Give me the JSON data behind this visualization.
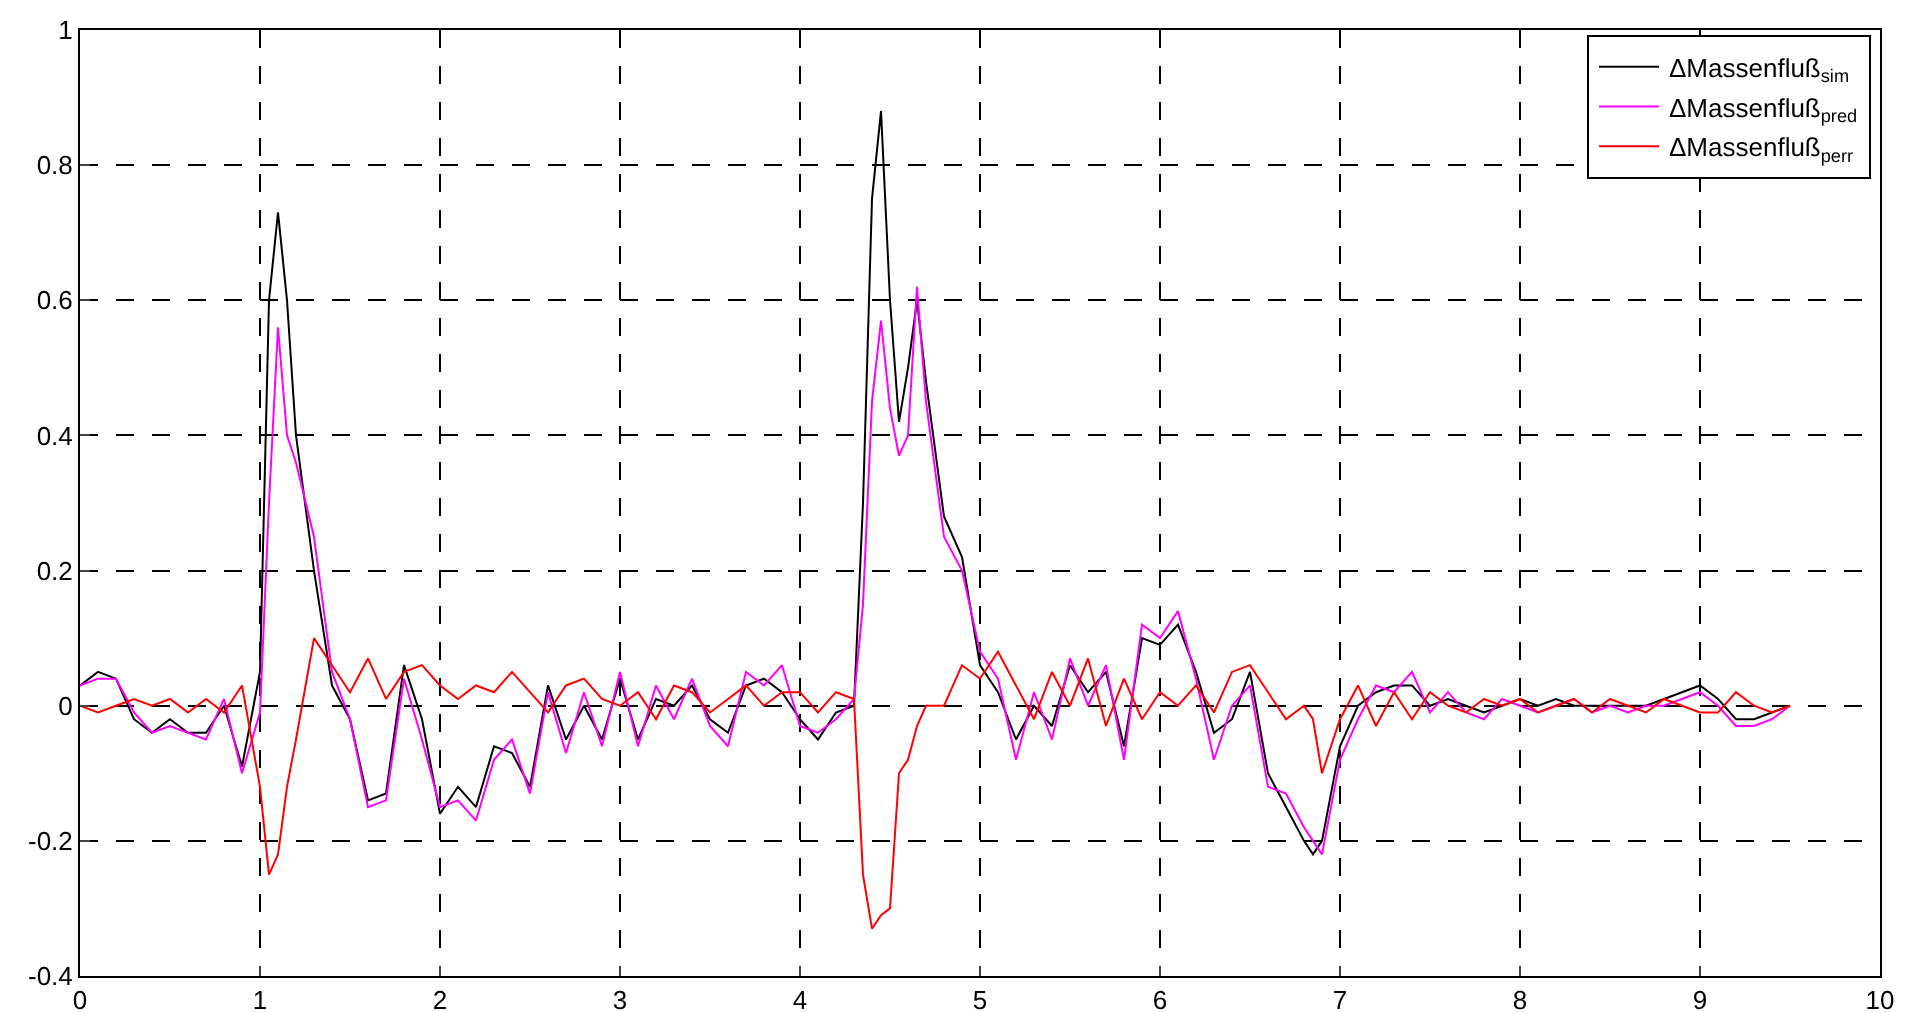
{
  "chart_data": {
    "type": "line",
    "xlim": [
      0,
      10
    ],
    "ylim": [
      -0.4,
      1
    ],
    "xticks": [
      0,
      1,
      2,
      3,
      4,
      5,
      6,
      7,
      8,
      9,
      10
    ],
    "yticks": [
      -0.4,
      -0.2,
      0,
      0.2,
      0.4,
      0.6,
      0.8,
      1
    ],
    "grid": true,
    "legend": "top right",
    "line_style": "solid",
    "x": [
      0,
      0.1,
      0.2,
      0.3,
      0.4,
      0.5,
      0.6,
      0.7,
      0.8,
      0.9,
      1.0,
      1.05,
      1.1,
      1.15,
      1.2,
      1.3,
      1.4,
      1.5,
      1.6,
      1.7,
      1.8,
      1.9,
      2.0,
      2.1,
      2.2,
      2.3,
      2.4,
      2.5,
      2.6,
      2.7,
      2.8,
      2.9,
      3.0,
      3.1,
      3.2,
      3.3,
      3.4,
      3.5,
      3.6,
      3.7,
      3.8,
      3.9,
      4.0,
      4.1,
      4.2,
      4.3,
      4.35,
      4.4,
      4.45,
      4.5,
      4.55,
      4.6,
      4.65,
      4.7,
      4.8,
      4.9,
      5.0,
      5.1,
      5.2,
      5.3,
      5.4,
      5.5,
      5.6,
      5.7,
      5.8,
      5.9,
      6.0,
      6.1,
      6.2,
      6.3,
      6.4,
      6.5,
      6.6,
      6.7,
      6.8,
      6.85,
      6.9,
      7.0,
      7.1,
      7.2,
      7.3,
      7.4,
      7.5,
      7.6,
      7.7,
      7.8,
      7.9,
      8.0,
      8.1,
      8.2,
      8.3,
      8.4,
      8.5,
      8.6,
      8.7,
      8.8,
      8.9,
      9.0,
      9.1,
      9.2,
      9.3,
      9.4,
      9.5
    ],
    "series": [
      {
        "name": "ΔMassenfluß$_{sim}$",
        "color": "#000000",
        "values": [
          0.03,
          0.05,
          0.04,
          -0.02,
          -0.04,
          -0.02,
          -0.04,
          -0.04,
          0.0,
          -0.09,
          0.05,
          0.6,
          0.73,
          0.6,
          0.4,
          0.2,
          0.03,
          -0.02,
          -0.14,
          -0.13,
          0.06,
          -0.02,
          -0.16,
          -0.12,
          -0.15,
          -0.06,
          -0.07,
          -0.12,
          0.03,
          -0.05,
          0.0,
          -0.05,
          0.04,
          -0.05,
          0.01,
          0.0,
          0.03,
          -0.02,
          -0.04,
          0.03,
          0.04,
          0.02,
          -0.02,
          -0.05,
          -0.01,
          0.0,
          0.3,
          0.75,
          0.88,
          0.6,
          0.42,
          0.5,
          0.6,
          0.48,
          0.28,
          0.22,
          0.06,
          0.02,
          -0.05,
          0.0,
          -0.03,
          0.06,
          0.02,
          0.05,
          -0.06,
          0.1,
          0.09,
          0.12,
          0.05,
          -0.04,
          -0.02,
          0.05,
          -0.1,
          -0.15,
          -0.2,
          -0.22,
          -0.2,
          -0.06,
          0.0,
          0.02,
          0.03,
          0.03,
          0.0,
          0.01,
          0.0,
          -0.01,
          0.0,
          0.01,
          0.0,
          0.01,
          0.0,
          0.0,
          0.0,
          0.0,
          0.0,
          0.01,
          0.02,
          0.03,
          0.01,
          -0.02,
          -0.02,
          -0.01,
          0.0
        ]
      },
      {
        "name": "ΔMassenfluß$_{pred}$",
        "color": "#ff00ff",
        "values": [
          0.03,
          0.04,
          0.04,
          -0.01,
          -0.04,
          -0.03,
          -0.04,
          -0.05,
          0.01,
          -0.1,
          -0.01,
          0.3,
          0.56,
          0.4,
          0.36,
          0.25,
          0.05,
          -0.02,
          -0.15,
          -0.14,
          0.04,
          -0.05,
          -0.15,
          -0.14,
          -0.17,
          -0.08,
          -0.05,
          -0.13,
          0.02,
          -0.07,
          0.02,
          -0.06,
          0.05,
          -0.06,
          0.03,
          -0.02,
          0.04,
          -0.03,
          -0.06,
          0.05,
          0.03,
          0.06,
          -0.03,
          -0.04,
          -0.02,
          0.01,
          0.15,
          0.45,
          0.57,
          0.44,
          0.37,
          0.4,
          0.62,
          0.45,
          0.25,
          0.2,
          0.08,
          0.04,
          -0.08,
          0.02,
          -0.05,
          0.07,
          0.0,
          0.06,
          -0.08,
          0.12,
          0.1,
          0.14,
          0.04,
          -0.08,
          0.0,
          0.03,
          -0.12,
          -0.13,
          -0.18,
          -0.2,
          -0.22,
          -0.08,
          -0.02,
          0.03,
          0.02,
          0.05,
          -0.01,
          0.02,
          -0.01,
          -0.02,
          0.01,
          0.0,
          -0.01,
          0.0,
          0.01,
          -0.01,
          0.0,
          -0.01,
          0.0,
          0.0,
          0.01,
          0.02,
          0.0,
          -0.03,
          -0.03,
          -0.02,
          0.0
        ]
      },
      {
        "name": "ΔMassenfluß$_{perr}$",
        "color": "#ff0000",
        "values": [
          0.0,
          -0.01,
          0.0,
          0.01,
          0.0,
          0.01,
          -0.01,
          0.01,
          -0.01,
          0.03,
          -0.12,
          -0.25,
          -0.22,
          -0.12,
          -0.05,
          0.1,
          0.06,
          0.02,
          0.07,
          0.01,
          0.05,
          0.06,
          0.03,
          0.01,
          0.03,
          0.02,
          0.05,
          0.02,
          -0.01,
          0.03,
          0.04,
          0.01,
          0.0,
          0.02,
          -0.02,
          0.03,
          0.02,
          -0.01,
          0.01,
          0.03,
          0.0,
          0.02,
          0.02,
          -0.01,
          0.02,
          0.01,
          -0.25,
          -0.33,
          -0.31,
          -0.3,
          -0.1,
          -0.08,
          -0.03,
          0.0,
          0.0,
          0.06,
          0.04,
          0.08,
          0.03,
          -0.02,
          0.05,
          0.0,
          0.07,
          -0.03,
          0.04,
          -0.02,
          0.02,
          0.0,
          0.03,
          -0.01,
          0.05,
          0.06,
          0.02,
          -0.02,
          0.0,
          -0.02,
          -0.1,
          -0.02,
          0.03,
          -0.03,
          0.02,
          -0.02,
          0.02,
          0.0,
          -0.01,
          0.01,
          0.0,
          0.01,
          -0.01,
          0.0,
          0.01,
          -0.01,
          0.01,
          0.0,
          -0.01,
          0.01,
          0.0,
          -0.01,
          -0.01,
          0.02,
          0.0,
          -0.01,
          0.0
        ]
      }
    ]
  }
}
